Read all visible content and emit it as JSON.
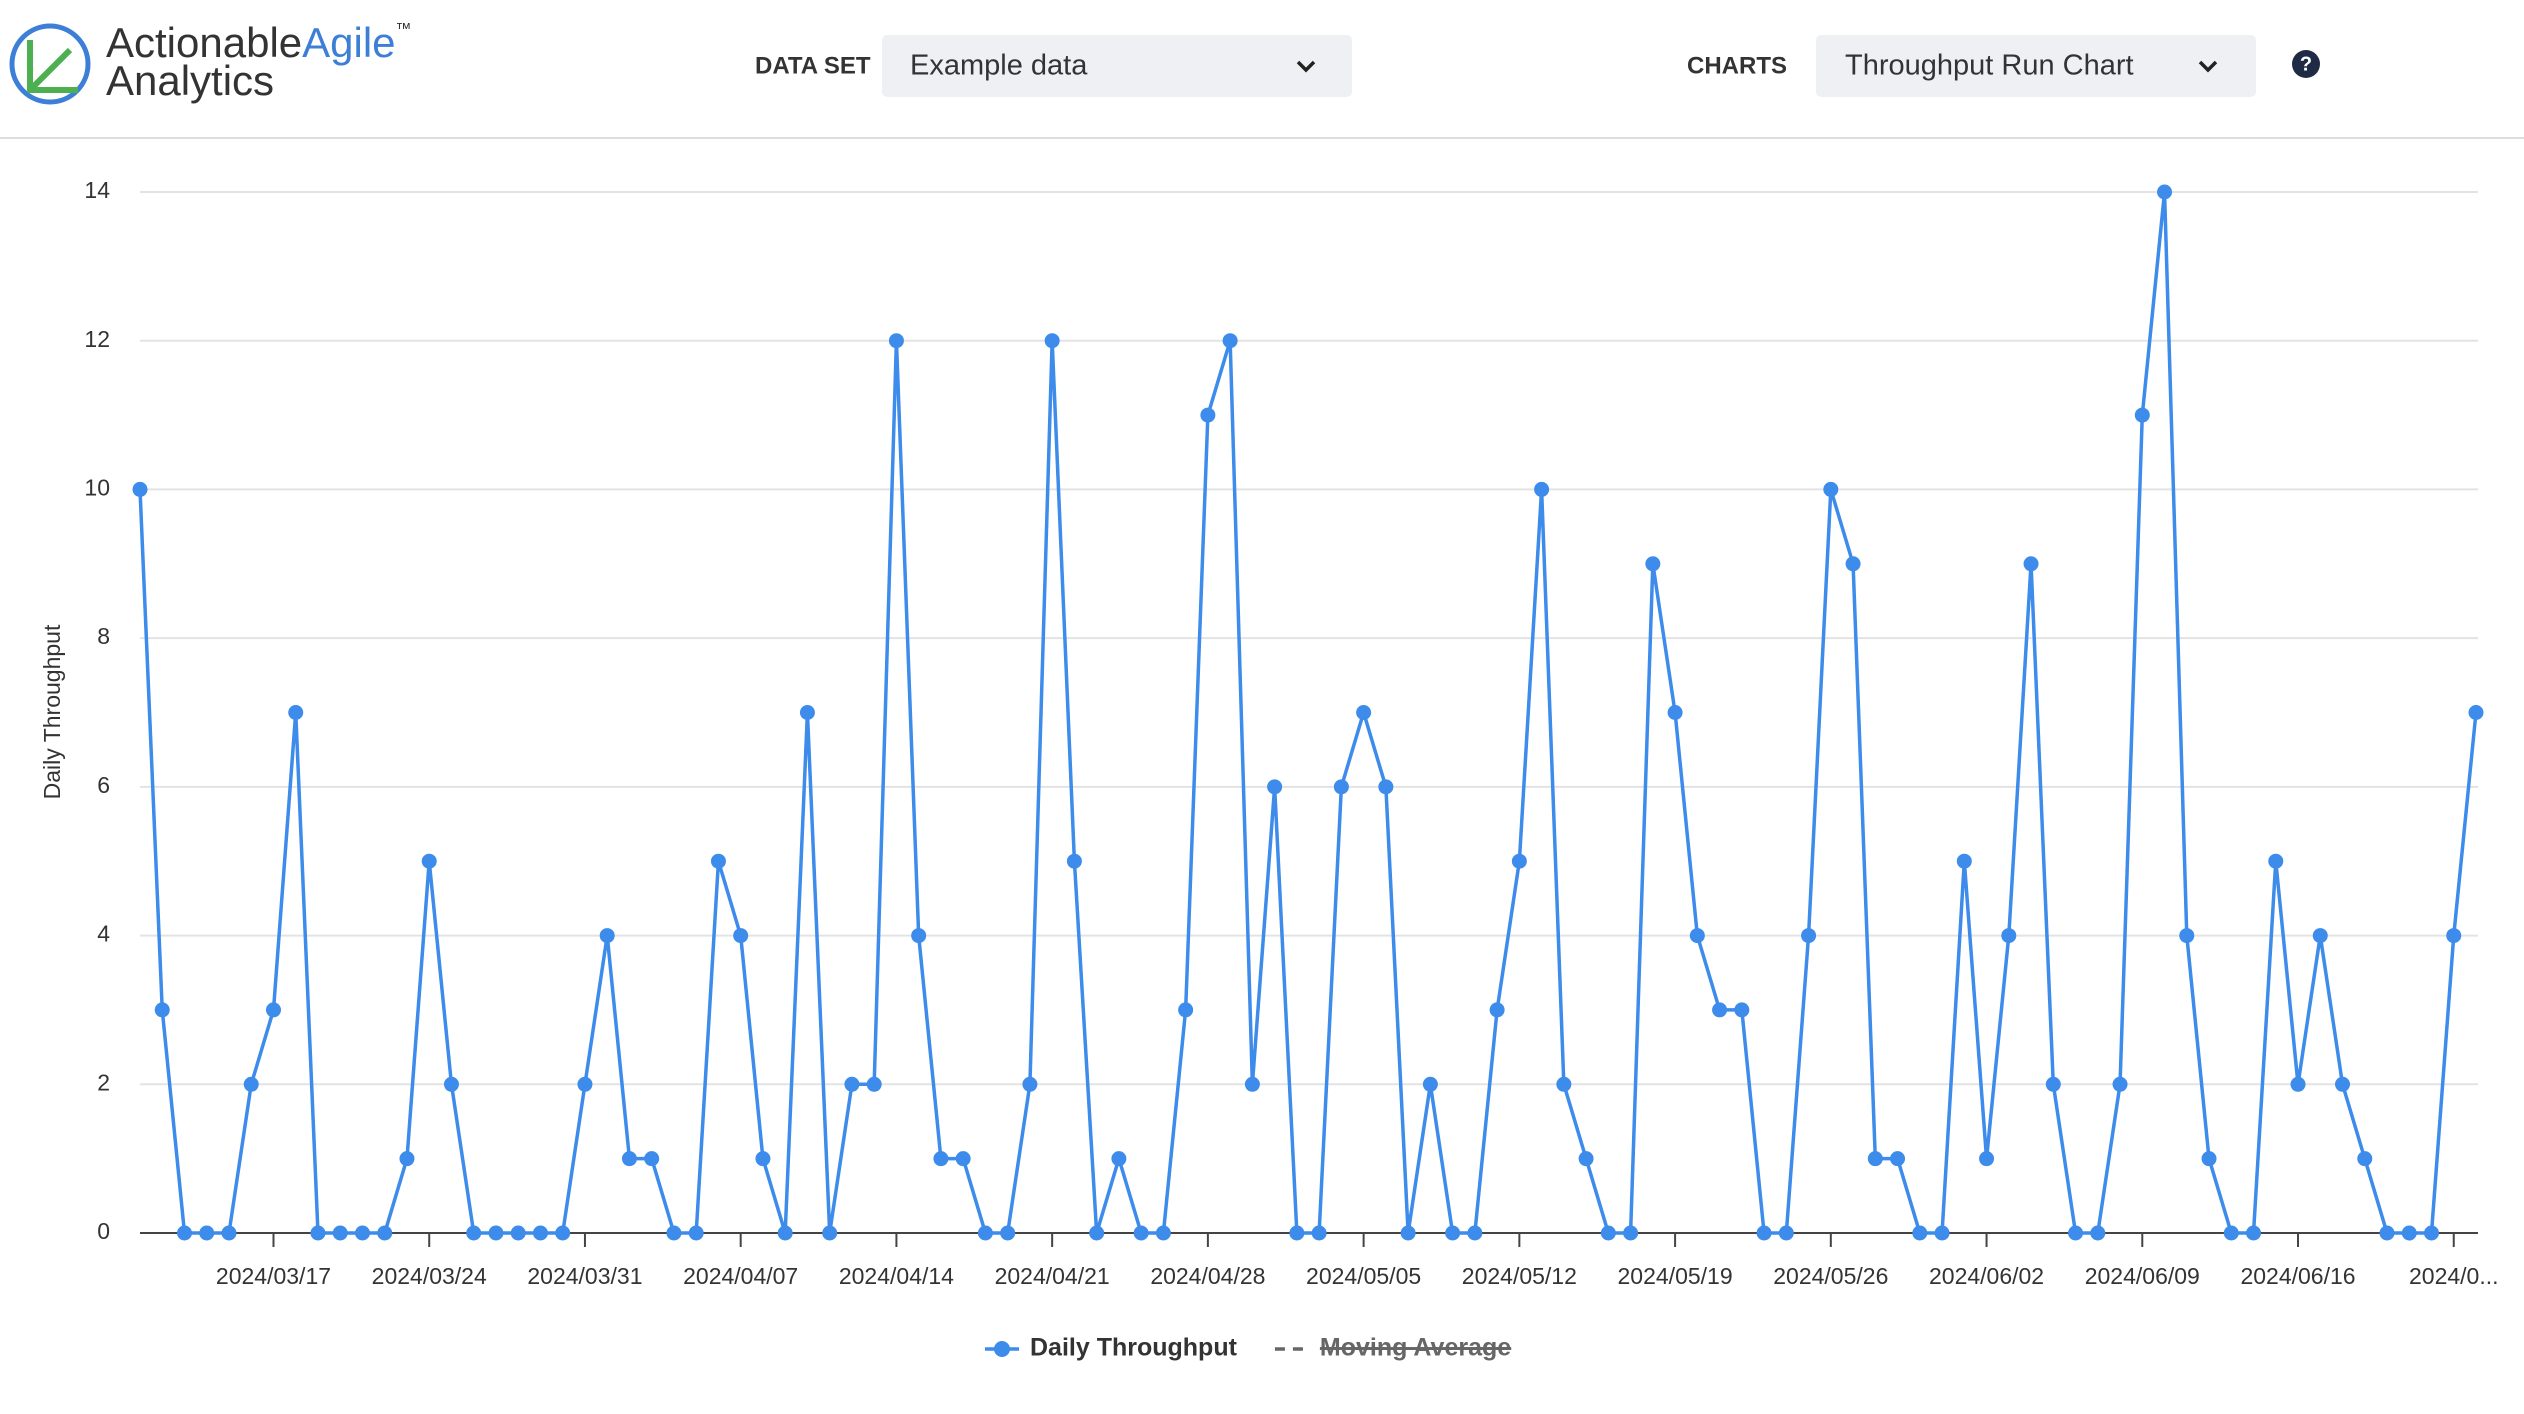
{
  "header": {
    "logo": {
      "word1": "Actionable",
      "word2": "Agile",
      "tm": "™",
      "word3": "Analytics"
    },
    "dataset_label": "DATA SET",
    "dataset_value": "Example data",
    "charts_label": "CHARTS",
    "charts_value": "Throughput Run Chart",
    "help": "?"
  },
  "chart_data": {
    "type": "line",
    "y_label": "Daily Throughput",
    "categories": [
      null,
      null,
      null,
      null,
      null,
      null,
      "2024/03/17",
      null,
      null,
      null,
      null,
      null,
      null,
      "2024/03/24",
      null,
      null,
      null,
      null,
      null,
      null,
      "2024/03/31",
      null,
      null,
      null,
      null,
      null,
      null,
      "2024/04/07",
      null,
      null,
      null,
      null,
      null,
      null,
      "2024/04/14",
      null,
      null,
      null,
      null,
      null,
      null,
      "2024/04/21",
      null,
      null,
      null,
      null,
      null,
      null,
      "2024/04/28",
      null,
      null,
      null,
      null,
      null,
      null,
      "2024/05/05",
      null,
      null,
      null,
      null,
      null,
      null,
      "2024/05/12",
      null,
      null,
      null,
      null,
      null,
      null,
      "2024/05/19",
      null,
      null,
      null,
      null,
      null,
      null,
      "2024/05/26",
      null,
      null,
      null,
      null,
      null,
      null,
      "2024/06/02",
      null,
      null,
      null,
      null,
      null,
      null,
      "2024/06/09",
      null,
      null,
      null,
      null,
      null,
      null,
      "2024/06/16",
      null,
      null,
      null,
      null,
      null,
      null,
      "2024/0...",
      null
    ],
    "series": [
      {
        "name": "Daily Throughput",
        "color": "#3d8bea",
        "values": [
          10,
          3,
          0,
          0,
          0,
          2,
          3,
          7,
          0,
          0,
          0,
          0,
          1,
          5,
          2,
          0,
          0,
          0,
          0,
          0,
          2,
          4,
          1,
          1,
          0,
          0,
          5,
          4,
          1,
          0,
          7,
          0,
          2,
          2,
          12,
          4,
          1,
          1,
          0,
          0,
          2,
          12,
          5,
          0,
          1,
          0,
          0,
          3,
          11,
          12,
          2,
          6,
          0,
          0,
          6,
          7,
          6,
          0,
          2,
          0,
          0,
          3,
          5,
          10,
          2,
          1,
          0,
          0,
          9,
          7,
          4,
          3,
          3,
          0,
          0,
          4,
          10,
          9,
          1,
          1,
          0,
          0,
          5,
          1,
          4,
          9,
          2,
          0,
          0,
          2,
          11,
          14,
          4,
          1,
          0,
          0,
          5,
          2,
          4,
          2,
          1,
          0,
          0,
          0,
          4,
          7
        ]
      }
    ],
    "hidden_series": [
      {
        "name": "Moving Average",
        "color": "#666666"
      }
    ],
    "ylim": [
      0,
      14
    ],
    "yticks": [
      0,
      2,
      4,
      6,
      8,
      10,
      12,
      14
    ],
    "grid": true
  }
}
